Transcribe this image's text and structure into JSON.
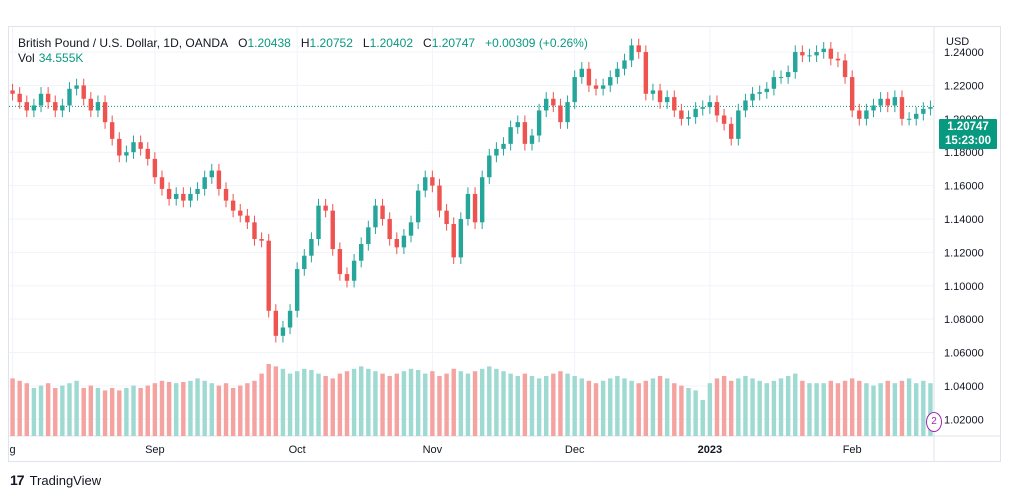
{
  "legend": {
    "symbol": "British Pound / U.S. Dollar, 1D, OANDA",
    "o_label": "O",
    "o": "1.20438",
    "h_label": "H",
    "h": "1.20752",
    "l_label": "L",
    "l": "1.20402",
    "c_label": "C",
    "c": "1.20747",
    "change": "+0.00309 (+0.26%)",
    "vol_label": "Vol",
    "vol": "34.555K"
  },
  "price_axis": {
    "currency": "USD",
    "last_price": "1.20747",
    "countdown": "15:23:00"
  },
  "footer": {
    "brand": "TradingView"
  },
  "colors": {
    "up": "#26a69a",
    "down": "#ef5350",
    "up_vol": "#9ed9d2",
    "down_vol": "#f5a3a1",
    "grid": "#f0f3fa"
  },
  "chart_data": {
    "type": "candlestick",
    "title": "British Pound / U.S. Dollar, 1D, OANDA",
    "ylim": [
      1.01,
      1.255
    ],
    "y_ticks": [
      "1.24000",
      "1.22000",
      "1.20000",
      "1.18000",
      "1.16000",
      "1.14000",
      "1.12000",
      "1.10000",
      "1.08000",
      "1.06000",
      "1.04000",
      "1.02000"
    ],
    "x_ticks": [
      {
        "label": "g",
        "index": 0
      },
      {
        "label": "Sep",
        "index": 20
      },
      {
        "label": "Oct",
        "index": 40
      },
      {
        "label": "Nov",
        "index": 59
      },
      {
        "label": "Dec",
        "index": 79
      },
      {
        "label": "2023",
        "index": 98
      },
      {
        "label": "Feb",
        "index": 118
      }
    ],
    "closes": [
      1.215,
      1.21,
      1.205,
      1.208,
      1.215,
      1.21,
      1.205,
      1.208,
      1.218,
      1.22,
      1.212,
      1.205,
      1.21,
      1.198,
      1.188,
      1.178,
      1.18,
      1.186,
      1.182,
      1.176,
      1.165,
      1.158,
      1.152,
      1.155,
      1.151,
      1.155,
      1.158,
      1.165,
      1.169,
      1.158,
      1.151,
      1.145,
      1.142,
      1.138,
      1.128,
      1.127,
      1.085,
      1.07,
      1.075,
      1.085,
      1.11,
      1.118,
      1.128,
      1.148,
      1.145,
      1.122,
      1.107,
      1.103,
      1.115,
      1.125,
      1.135,
      1.148,
      1.14,
      1.128,
      1.123,
      1.13,
      1.138,
      1.157,
      1.165,
      1.16,
      1.145,
      1.137,
      1.117,
      1.14,
      1.155,
      1.138,
      1.165,
      1.178,
      1.182,
      1.185,
      1.195,
      1.198,
      1.185,
      1.19,
      1.205,
      1.212,
      1.208,
      1.198,
      1.21,
      1.225,
      1.23,
      1.22,
      1.218,
      1.22,
      1.225,
      1.23,
      1.235,
      1.244,
      1.24,
      1.215,
      1.217,
      1.21,
      1.213,
      1.205,
      1.2,
      1.201,
      1.206,
      1.207,
      1.21,
      1.202,
      1.197,
      1.188,
      1.205,
      1.211,
      1.215,
      1.216,
      1.218,
      1.225,
      1.225,
      1.228,
      1.24,
      1.238,
      1.238,
      1.24,
      1.242,
      1.236,
      1.235,
      1.225,
      1.205,
      1.2,
      1.205,
      1.208,
      1.212,
      1.208,
      1.213,
      1.2,
      1.2,
      1.203,
      1.206,
      1.207
    ],
    "volumes": [
      48,
      46,
      44,
      40,
      42,
      44,
      40,
      42,
      44,
      46,
      40,
      42,
      40,
      38,
      40,
      38,
      40,
      42,
      40,
      42,
      44,
      46,
      45,
      44,
      45,
      46,
      48,
      46,
      44,
      42,
      44,
      40,
      42,
      44,
      46,
      52,
      60,
      58,
      56,
      52,
      54,
      56,
      55,
      52,
      50,
      48,
      52,
      54,
      56,
      58,
      56,
      54,
      52,
      50,
      52,
      54,
      56,
      55,
      52,
      54,
      50,
      52,
      56,
      54,
      52,
      54,
      56,
      58,
      56,
      54,
      52,
      50,
      52,
      50,
      48,
      50,
      52,
      54,
      52,
      50,
      48,
      46,
      44,
      46,
      48,
      50,
      48,
      46,
      44,
      46,
      48,
      50,
      48,
      44,
      42,
      40,
      38,
      30,
      44,
      48,
      50,
      46,
      48,
      50,
      48,
      46,
      44,
      46,
      48,
      50,
      52,
      46,
      44,
      44,
      44,
      46,
      44,
      46,
      48,
      46,
      44,
      42,
      44,
      46,
      44,
      46,
      48,
      44,
      46,
      44
    ]
  }
}
